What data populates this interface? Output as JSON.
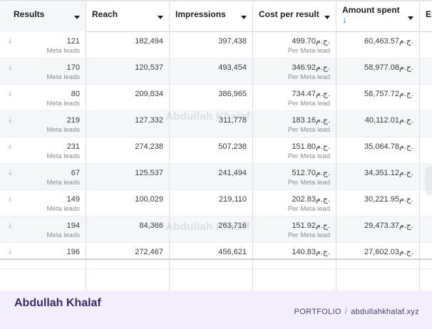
{
  "columns": [
    {
      "label": "Results"
    },
    {
      "label": "Reach"
    },
    {
      "label": "Impressions"
    },
    {
      "label": "Cost per result"
    },
    {
      "label": "Amount spent",
      "sort_indicator": "↓"
    },
    {
      "label": "En"
    }
  ],
  "rows": [
    {
      "results": "121",
      "results_sub": "Meta leads",
      "reach": "182,494",
      "impressions": "397,438",
      "cpr": "499.70ج.م.",
      "cpr_sub": "Per Meta lead",
      "spent": "60,463.57ج.م."
    },
    {
      "results": "170",
      "results_sub": "Meta leads",
      "reach": "120,537",
      "impressions": "493,454",
      "cpr": "346.92ج.م.",
      "cpr_sub": "Per Meta lead",
      "spent": "58,977.08ج.م."
    },
    {
      "results": "80",
      "results_sub": "Meta leads",
      "reach": "209,834",
      "impressions": "386,965",
      "cpr": "734.47ج.م.",
      "cpr_sub": "Per Meta lead",
      "spent": "58,757.72ج.م."
    },
    {
      "results": "219",
      "results_sub": "Meta leads",
      "reach": "127,332",
      "impressions": "311,778",
      "cpr": "183.16ج.م.",
      "cpr_sub": "Per Meta lead",
      "spent": "40,112.01ج.م."
    },
    {
      "results": "231",
      "results_sub": "Meta leads",
      "reach": "274,238",
      "impressions": "507,238",
      "cpr": "151.80ج.م.",
      "cpr_sub": "Per Meta lead",
      "spent": "35,064.78ج.م."
    },
    {
      "results": "67",
      "results_sub": "Meta leads",
      "reach": "125,537",
      "impressions": "241,494",
      "cpr": "512.70ج.م.",
      "cpr_sub": "Per Meta lead",
      "spent": "34,351.12ج.م."
    },
    {
      "results": "149",
      "results_sub": "Meta leads",
      "reach": "100,029",
      "impressions": "219,110",
      "cpr": "202.83ج.م.",
      "cpr_sub": "Per Meta lead",
      "spent": "30,221.95ج.م."
    },
    {
      "results": "194",
      "results_sub": "Meta leads",
      "reach": "84,366",
      "impressions": "263,716",
      "cpr": "151.92ج.م.",
      "cpr_sub": "Per Meta lead",
      "spent": "29,473.37ج.م."
    },
    {
      "results": "196",
      "results_sub": "",
      "reach": "272,467",
      "impressions": "456,621",
      "cpr": "140.83ج.م.",
      "cpr_sub": "",
      "spent": "27,602.03ج.م."
    }
  ],
  "watermark": "Abdullah Khalaf",
  "footer": {
    "brand": "Abdullah Khalaf",
    "portfolio_label": "PORTFOLIO",
    "separator": "/",
    "url": "abdullahkhalaf.xyz"
  },
  "colors": {
    "accent": "#1877f2",
    "footer_bg": "#f3eefb",
    "brand_text": "#3b2a6b"
  },
  "icons": {
    "row_action": "download-icon",
    "column_menu": "caret-down-icon",
    "sort": "arrow-down-icon"
  }
}
